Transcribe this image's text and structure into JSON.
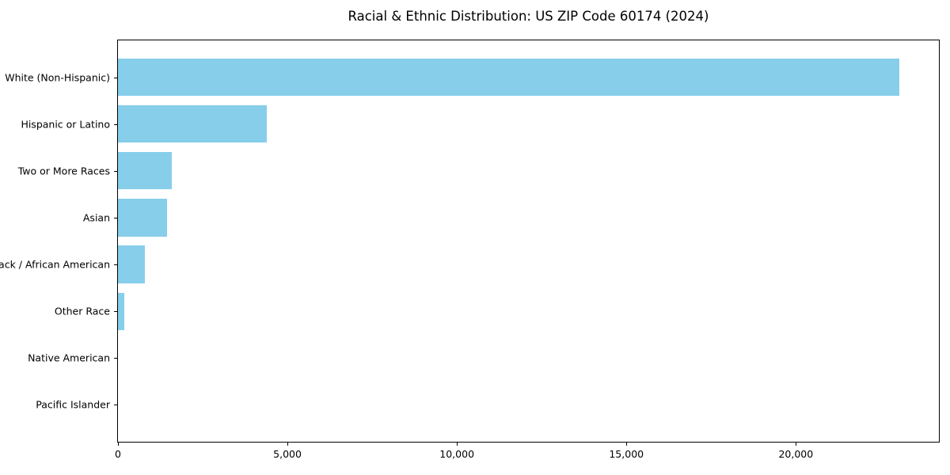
{
  "page": {
    "background": "#ffffff",
    "text_color": "#000000"
  },
  "chart_data": {
    "type": "bar",
    "orientation": "horizontal",
    "title": "Racial & Ethnic Distribution: US ZIP Code 60174 (2024)",
    "categories": [
      "White (Non-Hispanic)",
      "Hispanic or Latino",
      "Two or More Races",
      "Asian",
      "Black / African American",
      "Other Race",
      "Native American",
      "Pacific Islander"
    ],
    "values": [
      23060,
      4380,
      1580,
      1440,
      800,
      180,
      0,
      0
    ],
    "xlabel": "",
    "ylabel": "",
    "xlim": [
      0,
      24220
    ],
    "xticks": {
      "values": [
        0,
        5000,
        10000,
        15000,
        20000
      ],
      "labels": [
        "0",
        "5,000",
        "10,000",
        "15,000",
        "20,000"
      ]
    },
    "bar_color": "#87CEEB",
    "spine_color": "#000000",
    "grid": false,
    "legend": null,
    "bar_height_fraction": 0.8
  }
}
